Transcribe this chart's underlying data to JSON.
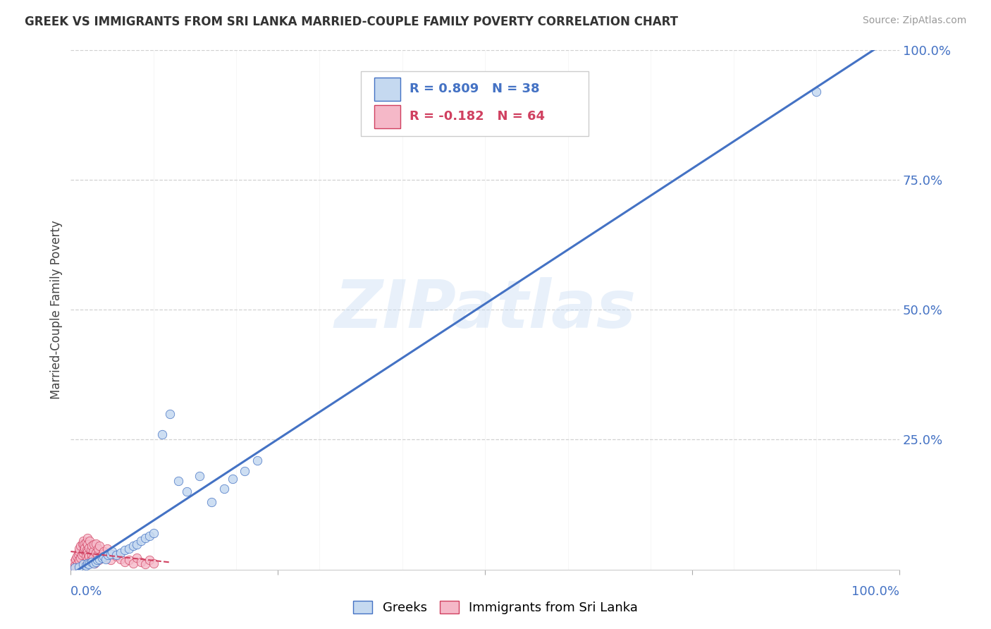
{
  "title": "GREEK VS IMMIGRANTS FROM SRI LANKA MARRIED-COUPLE FAMILY POVERTY CORRELATION CHART",
  "source": "Source: ZipAtlas.com",
  "ylabel": "Married-Couple Family Poverty",
  "watermark": "ZIPatlas",
  "greek_R": 0.809,
  "greek_N": 38,
  "sri_lanka_R": -0.182,
  "sri_lanka_N": 64,
  "greek_color": "#c5d9f0",
  "greek_edge_color": "#4472c4",
  "sri_lanka_color": "#f5b8c8",
  "sri_lanka_edge_color": "#d04060",
  "greek_trend_color": "#4472c4",
  "sri_lanka_trend_color": "#d04060",
  "greek_scatter_x": [
    0.005,
    0.01,
    0.015,
    0.018,
    0.02,
    0.022,
    0.025,
    0.028,
    0.03,
    0.032,
    0.035,
    0.038,
    0.04,
    0.042,
    0.045,
    0.048,
    0.05,
    0.055,
    0.06,
    0.065,
    0.07,
    0.075,
    0.08,
    0.085,
    0.09,
    0.095,
    0.1,
    0.11,
    0.12,
    0.13,
    0.14,
    0.155,
    0.17,
    0.185,
    0.195,
    0.21,
    0.225,
    0.9
  ],
  "greek_scatter_y": [
    0.003,
    0.005,
    0.01,
    0.008,
    0.012,
    0.01,
    0.015,
    0.012,
    0.015,
    0.018,
    0.02,
    0.022,
    0.025,
    0.02,
    0.028,
    0.03,
    0.035,
    0.028,
    0.032,
    0.038,
    0.04,
    0.045,
    0.048,
    0.055,
    0.06,
    0.065,
    0.07,
    0.26,
    0.3,
    0.17,
    0.15,
    0.18,
    0.13,
    0.155,
    0.175,
    0.19,
    0.21,
    0.92
  ],
  "sri_lanka_scatter_x": [
    0.002,
    0.003,
    0.004,
    0.005,
    0.006,
    0.007,
    0.008,
    0.009,
    0.01,
    0.01,
    0.01,
    0.012,
    0.012,
    0.013,
    0.014,
    0.015,
    0.015,
    0.016,
    0.016,
    0.017,
    0.018,
    0.018,
    0.019,
    0.02,
    0.02,
    0.02,
    0.02,
    0.021,
    0.022,
    0.022,
    0.023,
    0.024,
    0.024,
    0.025,
    0.025,
    0.026,
    0.027,
    0.027,
    0.028,
    0.029,
    0.03,
    0.03,
    0.032,
    0.033,
    0.034,
    0.035,
    0.036,
    0.038,
    0.04,
    0.042,
    0.044,
    0.046,
    0.048,
    0.05,
    0.055,
    0.06,
    0.065,
    0.07,
    0.075,
    0.08,
    0.085,
    0.09,
    0.095,
    0.1
  ],
  "sri_lanka_scatter_y": [
    0.005,
    0.01,
    0.015,
    0.008,
    0.02,
    0.025,
    0.012,
    0.03,
    0.035,
    0.018,
    0.04,
    0.022,
    0.045,
    0.028,
    0.05,
    0.032,
    0.055,
    0.038,
    0.048,
    0.042,
    0.052,
    0.025,
    0.038,
    0.06,
    0.02,
    0.035,
    0.048,
    0.03,
    0.042,
    0.025,
    0.055,
    0.018,
    0.038,
    0.028,
    0.045,
    0.015,
    0.035,
    0.022,
    0.048,
    0.012,
    0.032,
    0.05,
    0.028,
    0.04,
    0.018,
    0.045,
    0.025,
    0.03,
    0.035,
    0.022,
    0.04,
    0.028,
    0.018,
    0.03,
    0.025,
    0.02,
    0.015,
    0.018,
    0.012,
    0.022,
    0.015,
    0.01,
    0.018,
    0.012
  ],
  "xlim": [
    0.0,
    1.0
  ],
  "ylim": [
    0.0,
    1.0
  ],
  "ytick_positions": [
    0.25,
    0.5,
    0.75,
    1.0
  ],
  "ytick_labels": [
    "25.0%",
    "50.0%",
    "75.0%",
    "100.0%"
  ],
  "xtick_minor": [
    0.1,
    0.2,
    0.3,
    0.4,
    0.5,
    0.6,
    0.7,
    0.8,
    0.9
  ],
  "axis_label_color": "#4472c4",
  "grid_color": "#cccccc",
  "background_color": "#ffffff",
  "title_color": "#333333",
  "title_fontsize": 12,
  "source_fontsize": 10,
  "tick_fontsize": 13,
  "ylabel_fontsize": 12,
  "legend_fontsize": 13
}
